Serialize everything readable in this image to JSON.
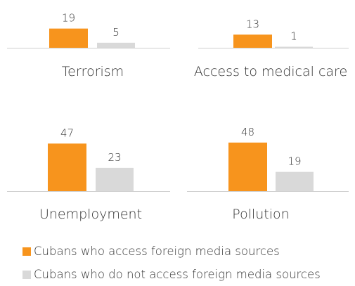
{
  "colors": {
    "accessing": "#F7941D",
    "not_accessing": "#D9D9D9",
    "baseline": "#D0D0D0",
    "text": "#333333"
  },
  "legend": {
    "items": [
      {
        "label": "Cubans who access foreign media sources",
        "color": "#F7941D"
      },
      {
        "label": "Cubans who do not access foreign media sources",
        "color": "#D9D9D9"
      }
    ]
  },
  "chart_data": {
    "type": "bar",
    "layout": "small-multiples",
    "categories": [
      "Terrorism",
      "Access to medical care",
      "Unemployment",
      "Pollution"
    ],
    "series": [
      {
        "name": "Cubans who access foreign media sources",
        "values": [
          19,
          13,
          47,
          48
        ]
      },
      {
        "name": "Cubans who do not access foreign media sources",
        "values": [
          5,
          1,
          23,
          19
        ]
      }
    ],
    "title": "",
    "xlabel": "",
    "ylabel": "",
    "grid": false,
    "legend_position": "bottom-left"
  }
}
